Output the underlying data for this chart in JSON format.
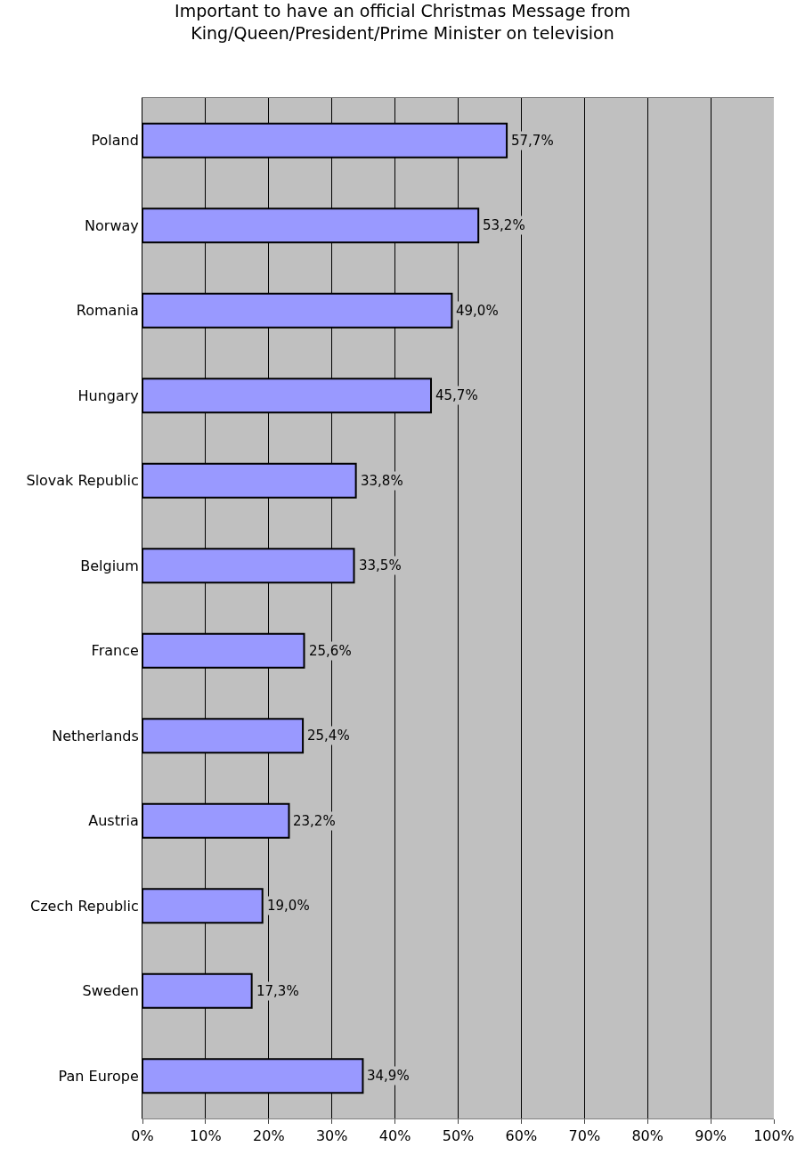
{
  "chart_data": {
    "type": "bar",
    "orientation": "horizontal",
    "title": "Important to have an official Christmas Message from\nKing/Queen/President/Prime Minister on television",
    "categories": [
      "Poland",
      "Norway",
      "Romania",
      "Hungary",
      "Slovak Republic",
      "Belgium",
      "France",
      "Netherlands",
      "Austria",
      "Czech Republic",
      "Sweden",
      "Pan Europe"
    ],
    "values": [
      57.7,
      53.2,
      49.0,
      45.7,
      33.8,
      33.5,
      25.6,
      25.4,
      23.2,
      19.0,
      17.3,
      34.9
    ],
    "value_labels": [
      "57,7%",
      "53,2%",
      "49,0%",
      "45,7%",
      "33,8%",
      "33,5%",
      "25,6%",
      "25,4%",
      "23,2%",
      "19,0%",
      "17,3%",
      "34,9%"
    ],
    "color": "#9999ff",
    "xlim": [
      0,
      100
    ],
    "xticks": [
      {
        "value": 0,
        "label": "0%"
      },
      {
        "value": 10,
        "label": "10%"
      },
      {
        "value": 20,
        "label": "20%"
      },
      {
        "value": 30,
        "label": "30%"
      },
      {
        "value": 40,
        "label": "40%"
      },
      {
        "value": 50,
        "label": "50%"
      },
      {
        "value": 60,
        "label": "60%"
      },
      {
        "value": 70,
        "label": "70%"
      },
      {
        "value": 80,
        "label": "80%"
      },
      {
        "value": 90,
        "label": "90%"
      },
      {
        "value": 100,
        "label": "100%"
      }
    ],
    "grid": "x"
  }
}
